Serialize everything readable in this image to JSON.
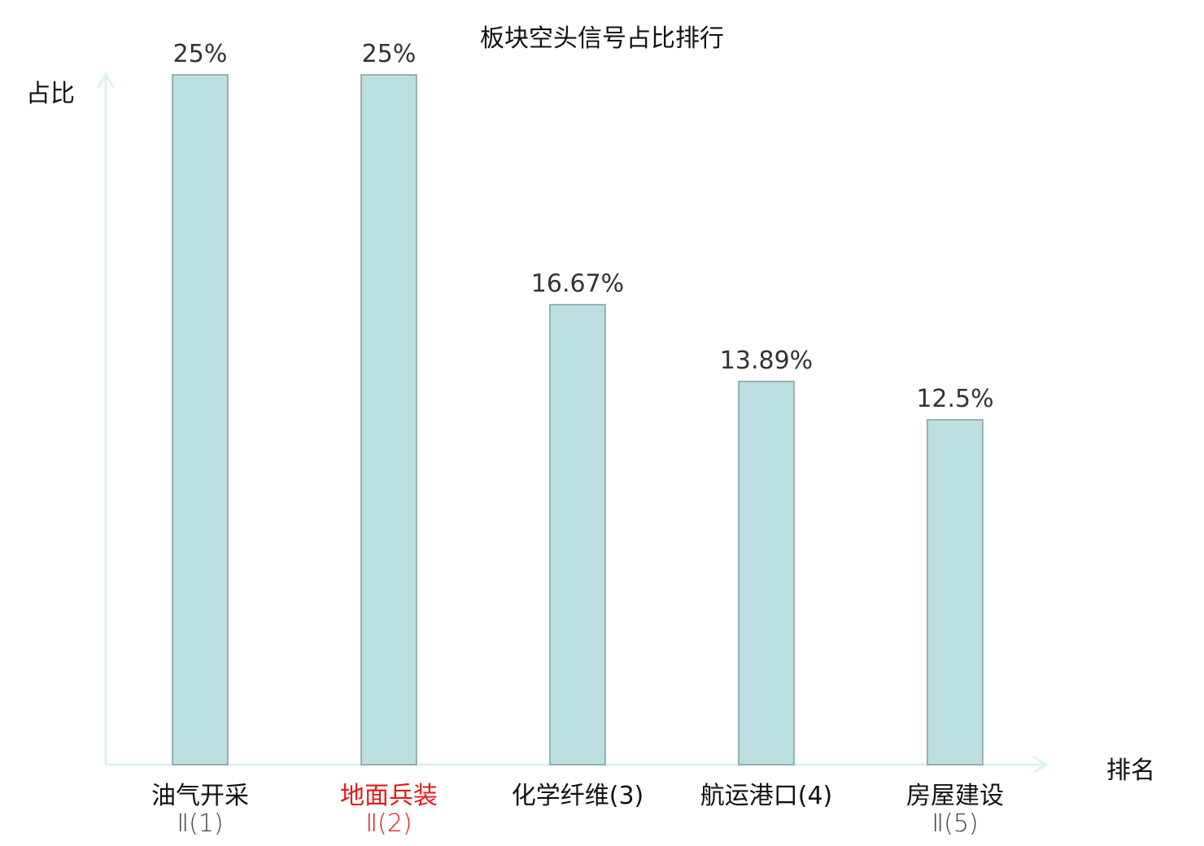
{
  "chart_data": {
    "type": "bar",
    "title": "板块空头信号占比排行",
    "ylabel": "占比",
    "xlabel": "排名",
    "categories": [
      {
        "line1": "油气开采",
        "line2": "Ⅱ(1)",
        "highlight": false
      },
      {
        "line1": "地面兵装",
        "line2": "Ⅱ(2)",
        "highlight": true
      },
      {
        "line1": "化学纤维(3)",
        "line2": "",
        "highlight": false
      },
      {
        "line1": "航运港口(4)",
        "line2": "",
        "highlight": false
      },
      {
        "line1": "房屋建设",
        "line2": "Ⅱ(5)",
        "highlight": false
      }
    ],
    "values": [
      25,
      25,
      16.67,
      13.89,
      12.5
    ],
    "value_labels": [
      "25%",
      "25%",
      "16.67%",
      "13.89%",
      "12.5%"
    ],
    "ylim": [
      0,
      25
    ],
    "grid": false,
    "legend": "none",
    "colors": {
      "bar_fill": "#bce0e1",
      "bar_stroke": "#7f9ea0",
      "axis": "#dff1ef",
      "highlight_text": "#e31a1c"
    }
  }
}
